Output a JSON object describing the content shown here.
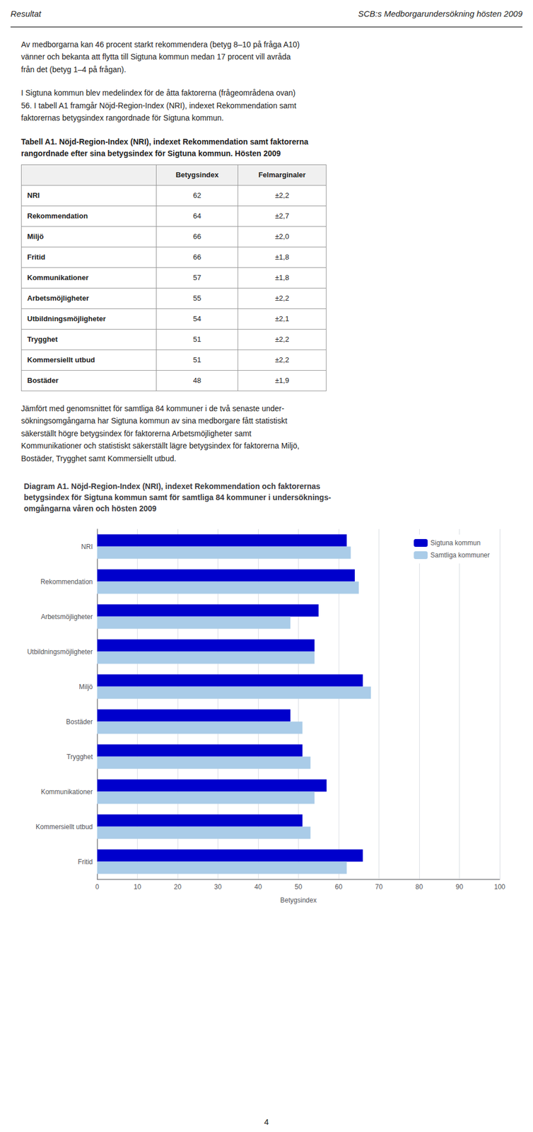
{
  "header": [
    "Resultat",
    "SCB:s Medborgarundersökning hösten 2009"
  ],
  "paragraphs": [
    "Av medborgarna kan 46 procent starkt rekommendera (betyg 8–10 på fråga A10)\nvänner och bekanta att flytta till Sigtuna kommun medan 17 procent vill avråda\nfrån det (betyg 1–4 på frågan).",
    "I Sigtuna kommun blev medelindex för de åtta faktorerna (frågeområdena ovan)\n56. I tabell A1 framgår Nöjd-Region-Index (NRI), indexet Rekommendation samt\nfaktorernas betygsindex rangordnade för Sigtuna kommun.",
    "Jämfört med genomsnittet för samtliga 84 kommuner i de två senaste under-\nsökningsomgångarna har Sigtuna kommun av sina medborgare fått statistiskt\nsäkerställt högre betygsindex för faktorerna Arbetsmöjligheter samt\nKommunikationer och statistiskt säkerställt lägre betygsindex för faktorerna Miljö,\nBostäder, Trygghet samt Kommersiellt utbud."
  ],
  "page_number": "4",
  "chart_data": [
    {
      "type": "table",
      "title": "Tabell A1. Nöjd-Region-Index (NRI), indexet Rekommendation samt faktorerna\nrangordnade efter sina betygsindex för Sigtuna kommun. Hösten 2009",
      "columns": [
        null,
        "Betygsindex",
        "Felmarginaler"
      ],
      "rows": [
        [
          "NRI",
          62,
          "±2,2"
        ],
        [
          "Rekommendation",
          64,
          "±2,7"
        ],
        [
          "Miljö",
          66,
          "±2,0"
        ],
        [
          "Fritid",
          66,
          "±1,8"
        ],
        [
          "Kommunikationer",
          57,
          "±1,8"
        ],
        [
          "Arbetsmöjligheter",
          55,
          "±2,2"
        ],
        [
          "Utbildningsmöjligheter",
          54,
          "±2,1"
        ],
        [
          "Trygghet",
          51,
          "±2,2"
        ],
        [
          "Kommersiellt utbud",
          51,
          "±2,2"
        ],
        [
          "Bostäder",
          48,
          "±1,9"
        ]
      ]
    },
    {
      "type": "bar",
      "orientation": "horizontal",
      "title": "Diagram A1. Nöjd-Region-Index (NRI), indexet Rekommendation och faktorernas\nbetygsindex för Sigtuna kommun samt för samtliga 84 kommuner i undersöknings-\nomgångarna våren och hösten 2009",
      "categories": [
        "NRI",
        "Rekommendation",
        "Arbetsmöjligheter",
        "Utbildningsmöjligheter",
        "Miljö",
        "Bostäder",
        "Trygghet",
        "Kommunikationer",
        "Kommersiellt utbud",
        "Fritid"
      ],
      "series": [
        {
          "name": "Sigtuna kommun",
          "color": "#0000CC",
          "values": [
            62,
            64,
            55,
            54,
            66,
            48,
            51,
            57,
            51,
            66
          ]
        },
        {
          "name": "Samtliga kommuner",
          "color": "#AACCE8",
          "values": [
            63,
            65,
            48,
            54,
            68,
            51,
            53,
            54,
            53,
            62
          ]
        }
      ],
      "xlabel": "Betygsindex",
      "xlim": [
        0,
        100
      ],
      "xticks": [
        0,
        10,
        20,
        30,
        40,
        50,
        60,
        70,
        80,
        90,
        100
      ],
      "grid": true,
      "legend": "upper right"
    }
  ]
}
